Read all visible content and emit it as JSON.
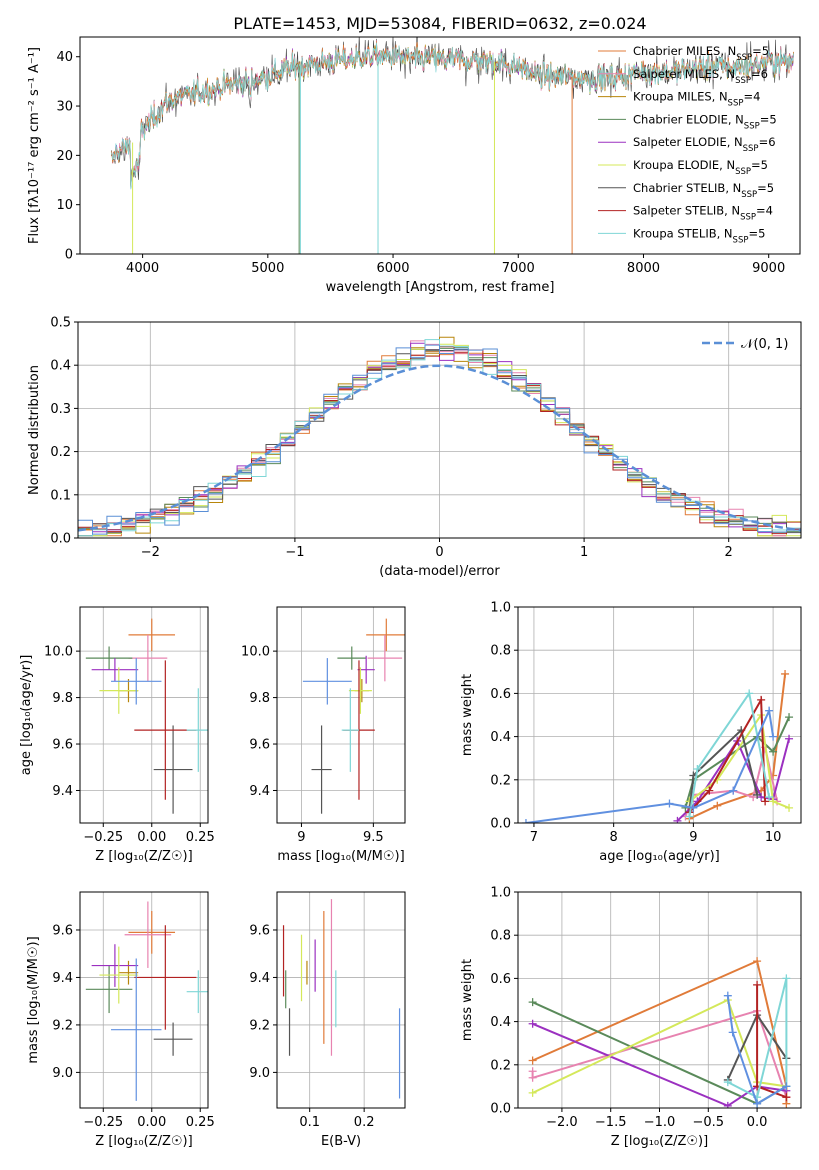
{
  "figure_title": "PLATE=1453, MJD=53084, FIBERID=0632, z=0.024",
  "colors": {
    "Chabrier MILES": "#e07b39",
    "Salpeter MILES": "#e783b0",
    "Kroupa MILES": "#b8860b",
    "Chabrier ELODIE": "#5a8a5a",
    "Salpeter ELODIE": "#9b30c0",
    "Kroupa ELODIE": "#d4e85a",
    "Chabrier STELIB": "#555555",
    "Salpeter STELIB": "#b22222",
    "Kroupa STELIB": "#7fd6d6",
    "gauss": "#5a8fd6",
    "blue": "#6090e0"
  },
  "chart_data": [
    {
      "id": "spectrum",
      "type": "line",
      "title": "PLATE=1453, MJD=53084, FIBERID=0632, z=0.024",
      "xlabel": "wavelength [Angstrom, rest frame]",
      "ylabel": "Flux [fλ10⁻¹⁷ erg cm⁻² s⁻¹ A⁻¹]",
      "xlim": [
        3500,
        9250
      ],
      "ylim": [
        0,
        44
      ],
      "xticks": [
        4000,
        5000,
        6000,
        7000,
        8000,
        9000
      ],
      "yticks": [
        0,
        10,
        20,
        30,
        40
      ],
      "legend_position": "top-right",
      "legend": [
        {
          "label": "Chabrier MILES, N",
          "sub": "SSP",
          "suffix": "=5"
        },
        {
          "label": "Salpeter MILES, N",
          "sub": "SSP",
          "suffix": "=6"
        },
        {
          "label": "Kroupa MILES, N",
          "sub": "SSP",
          "suffix": "=4"
        },
        {
          "label": "Chabrier ELODIE, N",
          "sub": "SSP",
          "suffix": "=5"
        },
        {
          "label": "Salpeter ELODIE, N",
          "sub": "SSP",
          "suffix": "=6"
        },
        {
          "label": "Kroupa ELODIE, N",
          "sub": "SSP",
          "suffix": "=5"
        },
        {
          "label": "Chabrier STELIB, N",
          "sub": "SSP",
          "suffix": "=5"
        },
        {
          "label": "Salpeter STELIB, N",
          "sub": "SSP",
          "suffix": "=4"
        },
        {
          "label": "Kroupa STELIB, N",
          "sub": "SSP",
          "suffix": "=5"
        }
      ],
      "continuum": {
        "x": [
          3750,
          3800,
          3900,
          4000,
          4100,
          4200,
          4300,
          4500,
          4800,
          5000,
          5200,
          5500,
          5800,
          6000,
          6300,
          6500,
          6800,
          7000,
          7200,
          7400,
          7600,
          7800,
          8000,
          8200,
          8500,
          8800,
          9000,
          9200
        ],
        "y": [
          19,
          21,
          22,
          25,
          28,
          31,
          32,
          33,
          35,
          36,
          38,
          39,
          40,
          40,
          39.5,
          39.5,
          39,
          38,
          36,
          36,
          35.5,
          36,
          37,
          37,
          38,
          38,
          39,
          39
        ]
      }
    },
    {
      "id": "residuals",
      "type": "histogram",
      "xlabel": "(data-model)/error",
      "ylabel": "Normed distribution",
      "xlim": [
        -2.5,
        2.5
      ],
      "ylim": [
        0,
        0.5
      ],
      "xticks": [
        -2,
        -1,
        0,
        1,
        2
      ],
      "yticks": [
        0.0,
        0.1,
        0.2,
        0.3,
        0.4,
        0.5
      ],
      "bin_width": 0.1,
      "grid": true,
      "legend_position": "top-right",
      "gauss_label": "𝒩(0, 1)"
    },
    {
      "id": "age_vs_Z",
      "type": "errorbar",
      "xlabel": "Z [log₁₀(Z/Z☉)]",
      "ylabel": "age  [log₁₀(age/yr)]",
      "xlim": [
        -0.37,
        0.29
      ],
      "ylim": [
        9.26,
        10.19
      ],
      "xticks": [
        -0.25,
        0.0,
        0.25
      ],
      "xticklabels": [
        "−0.25",
        "0.00",
        "0.25"
      ],
      "yticks": [
        9.4,
        9.6,
        9.8,
        10.0
      ],
      "grid": true,
      "points": [
        {
          "series": "Chabrier MILES",
          "x": 0.0,
          "xerr": 0.12,
          "y": 10.07,
          "yerr": 0.07
        },
        {
          "series": "Salpeter MILES",
          "x": -0.02,
          "xerr": 0.1,
          "y": 9.97,
          "yerr": 0.1
        },
        {
          "series": "Kroupa MILES",
          "x": -0.12,
          "xerr": 0.05,
          "y": 9.83,
          "yerr": 0.05
        },
        {
          "series": "Chabrier ELODIE",
          "x": -0.22,
          "xerr": 0.12,
          "y": 9.97,
          "yerr": 0.05
        },
        {
          "series": "Salpeter ELODIE",
          "x": -0.19,
          "xerr": 0.12,
          "y": 9.92,
          "yerr": 0.05
        },
        {
          "series": "Kroupa ELODIE",
          "x": -0.17,
          "xerr": 0.1,
          "y": 9.83,
          "yerr": 0.1
        },
        {
          "series": "Chabrier STELIB",
          "x": 0.11,
          "xerr": 0.1,
          "y": 9.49,
          "yerr": 0.19
        },
        {
          "series": "Salpeter STELIB",
          "x": 0.07,
          "xerr": 0.16,
          "y": 9.66,
          "yerr": 0.3
        },
        {
          "series": "Kroupa STELIB",
          "x": 0.24,
          "xerr": 0.06,
          "y": 9.66,
          "yerr": 0.18
        },
        {
          "series": "blue",
          "x": -0.08,
          "xerr": 0.13,
          "y": 9.87,
          "yerr": 0.1
        }
      ]
    },
    {
      "id": "age_vs_mass",
      "type": "errorbar",
      "xlabel": "mass [log₁₀(M/M☉)]",
      "ylabel": "",
      "xlim": [
        8.83,
        9.72
      ],
      "ylim": [
        9.26,
        10.19
      ],
      "xticks": [
        9.0,
        9.5
      ],
      "yticks": [
        9.4,
        9.6,
        9.8,
        10.0
      ],
      "grid": true,
      "points": [
        {
          "series": "Chabrier MILES",
          "x": 9.59,
          "xerr": 0.14,
          "y": 10.07,
          "yerr": 0.07
        },
        {
          "series": "Salpeter MILES",
          "x": 9.58,
          "xerr": 0.12,
          "y": 9.97,
          "yerr": 0.1
        },
        {
          "series": "Kroupa MILES",
          "x": 9.42,
          "xerr": 0.05,
          "y": 9.83,
          "yerr": 0.05
        },
        {
          "series": "Chabrier ELODIE",
          "x": 9.35,
          "xerr": 0.1,
          "y": 9.97,
          "yerr": 0.05
        },
        {
          "series": "Salpeter ELODIE",
          "x": 9.45,
          "xerr": 0.06,
          "y": 9.92,
          "yerr": 0.06
        },
        {
          "series": "Kroupa ELODIE",
          "x": 9.41,
          "xerr": 0.08,
          "y": 9.83,
          "yerr": 0.1
        },
        {
          "series": "Chabrier STELIB",
          "x": 9.14,
          "xerr": 0.07,
          "y": 9.49,
          "yerr": 0.19
        },
        {
          "series": "Salpeter STELIB",
          "x": 9.4,
          "xerr": 0.11,
          "y": 9.66,
          "yerr": 0.3
        },
        {
          "series": "Kroupa STELIB",
          "x": 9.34,
          "xerr": 0.06,
          "y": 9.66,
          "yerr": 0.18
        },
        {
          "series": "blue",
          "x": 9.18,
          "xerr": 0.17,
          "y": 9.87,
          "yerr": 0.1
        }
      ]
    },
    {
      "id": "mass_weight_vs_age",
      "type": "line",
      "xlabel": "age  [log₁₀(age/yr)]",
      "ylabel": "mass weight",
      "xlim": [
        6.8,
        10.35
      ],
      "ylim": [
        0,
        1.0
      ],
      "xticks": [
        7,
        8,
        9,
        10
      ],
      "yticks": [
        0.0,
        0.2,
        0.4,
        0.6,
        0.8,
        1.0
      ],
      "grid": true,
      "series": [
        {
          "name": "Chabrier MILES",
          "x": [
            8.95,
            9.3,
            9.85,
            10.0,
            10.15
          ],
          "y": [
            0.02,
            0.08,
            0.15,
            0.22,
            0.69
          ]
        },
        {
          "name": "Salpeter MILES",
          "x": [
            8.9,
            9.0,
            9.5,
            9.75,
            9.9,
            10.05
          ],
          "y": [
            0.03,
            0.13,
            0.15,
            0.12,
            0.35,
            0.1
          ]
        },
        {
          "name": "Chabrier ELODIE",
          "x": [
            8.9,
            9.0,
            9.8,
            10.0,
            10.2
          ],
          "y": [
            0.07,
            0.2,
            0.4,
            0.33,
            0.49
          ]
        },
        {
          "name": "Salpeter ELODIE",
          "x": [
            8.8,
            9.05,
            9.55,
            9.85,
            10.0,
            10.2
          ],
          "y": [
            0.01,
            0.1,
            0.38,
            0.12,
            0.11,
            0.39
          ]
        },
        {
          "name": "Kroupa ELODIE",
          "x": [
            8.95,
            9.3,
            9.85,
            10.0,
            10.2
          ],
          "y": [
            0.1,
            0.2,
            0.5,
            0.1,
            0.07
          ]
        },
        {
          "name": "Chabrier STELIB",
          "x": [
            8.95,
            9.0,
            9.6,
            9.8
          ],
          "y": [
            0.05,
            0.22,
            0.43,
            0.13
          ]
        },
        {
          "name": "Salpeter STELIB",
          "x": [
            8.95,
            9.2,
            9.85,
            9.9
          ],
          "y": [
            0.05,
            0.15,
            0.57,
            0.1
          ]
        },
        {
          "name": "Kroupa STELIB",
          "x": [
            8.95,
            9.05,
            9.7,
            9.95
          ],
          "y": [
            0.03,
            0.25,
            0.6,
            0.12
          ]
        },
        {
          "name": "blue",
          "x": [
            6.9,
            8.7,
            9.0,
            9.5,
            9.95,
            10.0
          ],
          "y": [
            0.0,
            0.09,
            0.07,
            0.15,
            0.52,
            0.4
          ]
        }
      ]
    },
    {
      "id": "mass_vs_Z",
      "type": "errorbar",
      "xlabel": "Z [log₁₀(Z/Z☉)]",
      "ylabel": "mass [log₁₀(M/M☉)]",
      "xlim": [
        -0.37,
        0.29
      ],
      "ylim": [
        8.85,
        9.76
      ],
      "xticks": [
        -0.25,
        0.0,
        0.25
      ],
      "xticklabels": [
        "−0.25",
        "0.00",
        "0.25"
      ],
      "yticks": [
        9.0,
        9.2,
        9.4,
        9.6
      ],
      "grid": true,
      "points": [
        {
          "series": "Chabrier MILES",
          "x": 0.0,
          "xerr": 0.12,
          "y": 9.59,
          "yerr": 0.09
        },
        {
          "series": "Salpeter MILES",
          "x": -0.02,
          "xerr": 0.12,
          "y": 9.58,
          "yerr": 0.14
        },
        {
          "series": "Kroupa MILES",
          "x": -0.12,
          "xerr": 0.05,
          "y": 9.42,
          "yerr": 0.05
        },
        {
          "series": "Chabrier ELODIE",
          "x": -0.22,
          "xerr": 0.12,
          "y": 9.35,
          "yerr": 0.1
        },
        {
          "series": "Salpeter ELODIE",
          "x": -0.19,
          "xerr": 0.12,
          "y": 9.45,
          "yerr": 0.09
        },
        {
          "series": "Kroupa ELODIE",
          "x": -0.17,
          "xerr": 0.1,
          "y": 9.41,
          "yerr": 0.12
        },
        {
          "series": "Chabrier STELIB",
          "x": 0.11,
          "xerr": 0.1,
          "y": 9.14,
          "yerr": 0.07
        },
        {
          "series": "Salpeter STELIB",
          "x": 0.07,
          "xerr": 0.16,
          "y": 9.4,
          "yerr": 0.22
        },
        {
          "series": "Kroupa STELIB",
          "x": 0.24,
          "xerr": 0.06,
          "y": 9.34,
          "yerr": 0.09
        },
        {
          "series": "blue",
          "x": -0.08,
          "xerr": 0.13,
          "y": 9.18,
          "yerr": 0.3
        }
      ]
    },
    {
      "id": "mass_vs_ebv",
      "type": "errorbar",
      "xlabel": "E(B-V)",
      "ylabel": "",
      "xlim": [
        0.04,
        0.275
      ],
      "ylim": [
        8.85,
        9.76
      ],
      "xticks": [
        0.1,
        0.2
      ],
      "yticks": [
        9.0,
        9.2,
        9.4,
        9.6
      ],
      "grid": true,
      "points": [
        {
          "series": "Chabrier MILES",
          "x": 0.126,
          "y": 9.4,
          "yerr": 0.28
        },
        {
          "series": "Salpeter MILES",
          "x": 0.14,
          "y": 9.4,
          "yerr": 0.33
        },
        {
          "series": "Kroupa MILES",
          "x": 0.095,
          "y": 9.42,
          "yerr": 0.05
        },
        {
          "series": "Chabrier ELODIE",
          "x": 0.056,
          "y": 9.35,
          "yerr": 0.08
        },
        {
          "series": "Salpeter ELODIE",
          "x": 0.11,
          "y": 9.45,
          "yerr": 0.11
        },
        {
          "series": "Kroupa ELODIE",
          "x": 0.085,
          "y": 9.44,
          "yerr": 0.14
        },
        {
          "series": "Chabrier STELIB",
          "x": 0.063,
          "y": 9.17,
          "yerr": 0.1
        },
        {
          "series": "Salpeter STELIB",
          "x": 0.052,
          "y": 9.47,
          "yerr": 0.15
        },
        {
          "series": "Kroupa STELIB",
          "x": 0.148,
          "y": 9.31,
          "yerr": 0.12
        },
        {
          "series": "blue",
          "x": 0.265,
          "y": 9.08,
          "yerr": 0.19
        }
      ]
    },
    {
      "id": "mass_weight_vs_Z",
      "type": "line",
      "xlabel": "Z [log₁₀(Z/Z☉)]",
      "ylabel": "mass weight",
      "xlim": [
        -2.45,
        0.45
      ],
      "ylim": [
        0,
        1.0
      ],
      "xticks": [
        -2.0,
        -1.5,
        -1.0,
        -0.5,
        0.0
      ],
      "xticklabels": [
        "−2.0",
        "−1.5",
        "−1.0",
        "−0.5",
        "0.0"
      ],
      "yticks": [
        0.0,
        0.2,
        0.4,
        0.6,
        0.8,
        1.0
      ],
      "grid": true,
      "series": [
        {
          "name": "Chabrier MILES",
          "x": [
            -2.3,
            0.0,
            0.3,
            0.3
          ],
          "y": [
            0.22,
            0.68,
            0.1,
            0.02
          ]
        },
        {
          "name": "Salpeter MILES",
          "x": [
            -2.3,
            -2.3,
            0.0,
            0.3
          ],
          "y": [
            0.17,
            0.14,
            0.45,
            0.05
          ]
        },
        {
          "name": "Chabrier ELODIE",
          "x": [
            -2.3,
            0.0,
            0.3
          ],
          "y": [
            0.49,
            0.02,
            0.1
          ]
        },
        {
          "name": "Salpeter ELODIE",
          "x": [
            -2.3,
            -0.3,
            0.0,
            0.3
          ],
          "y": [
            0.39,
            0.01,
            0.1,
            0.08
          ]
        },
        {
          "name": "Kroupa ELODIE",
          "x": [
            -2.3,
            -0.3,
            0.0,
            0.3
          ],
          "y": [
            0.07,
            0.5,
            0.12,
            0.1
          ]
        },
        {
          "name": "Chabrier STELIB",
          "x": [
            -0.3,
            0.0,
            0.3
          ],
          "y": [
            0.13,
            0.43,
            0.23
          ]
        },
        {
          "name": "Salpeter STELIB",
          "x": [
            0.0,
            0.0,
            0.3
          ],
          "y": [
            0.57,
            0.1,
            0.05
          ]
        },
        {
          "name": "Kroupa STELIB",
          "x": [
            -0.3,
            0.0,
            0.3,
            0.3
          ],
          "y": [
            0.12,
            0.05,
            0.6,
            0.1
          ]
        },
        {
          "name": "blue",
          "x": [
            -0.3,
            -0.25,
            0.0,
            0.3
          ],
          "y": [
            0.52,
            0.35,
            0.02,
            0.1
          ]
        }
      ]
    }
  ]
}
